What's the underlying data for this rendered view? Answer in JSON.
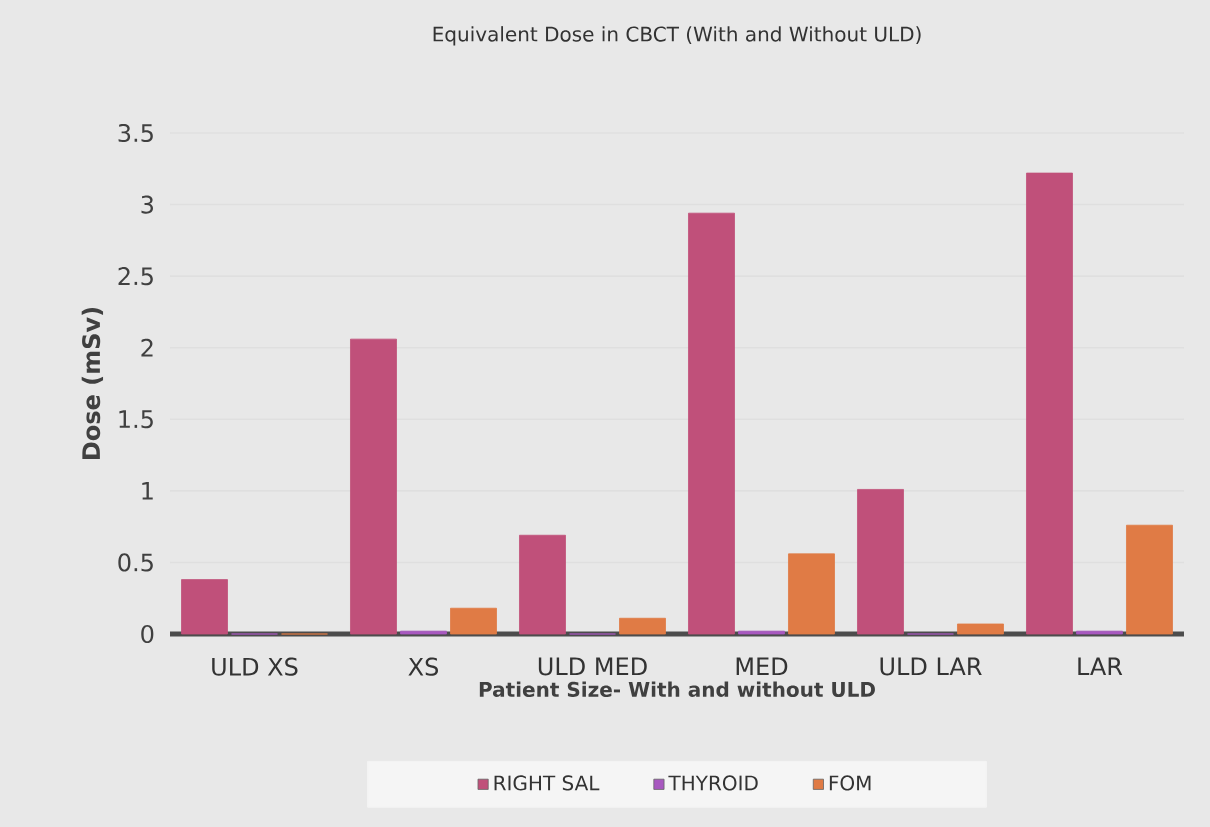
{
  "chart_data": {
    "type": "bar",
    "title": "Equivalent Dose in CBCT (With and Without ULD)",
    "xlabel": "Patient Size- With and without ULD",
    "ylabel": "Dose (mSv)",
    "categories": [
      "ULD XS",
      "XS",
      "ULD MED",
      "MED",
      "ULD LAR",
      "LAR"
    ],
    "series": [
      {
        "name": "RIGHT SAL",
        "color": "#c0507a",
        "values": [
          0.38,
          2.06,
          0.69,
          2.94,
          1.01,
          3.22
        ]
      },
      {
        "name": "THYROID",
        "color": "#a858c0",
        "values": [
          0,
          0.02,
          0,
          0.02,
          0,
          0.02
        ]
      },
      {
        "name": "FOM",
        "color": "#e07b45",
        "values": [
          0,
          0.18,
          0.11,
          0.56,
          0.07,
          0.76
        ]
      }
    ],
    "ylim": [
      0,
      3.5
    ],
    "yticks": [
      0,
      0.5,
      1,
      1.5,
      2,
      2.5,
      3,
      3.5
    ],
    "grid": "y",
    "legend": "bottom"
  }
}
